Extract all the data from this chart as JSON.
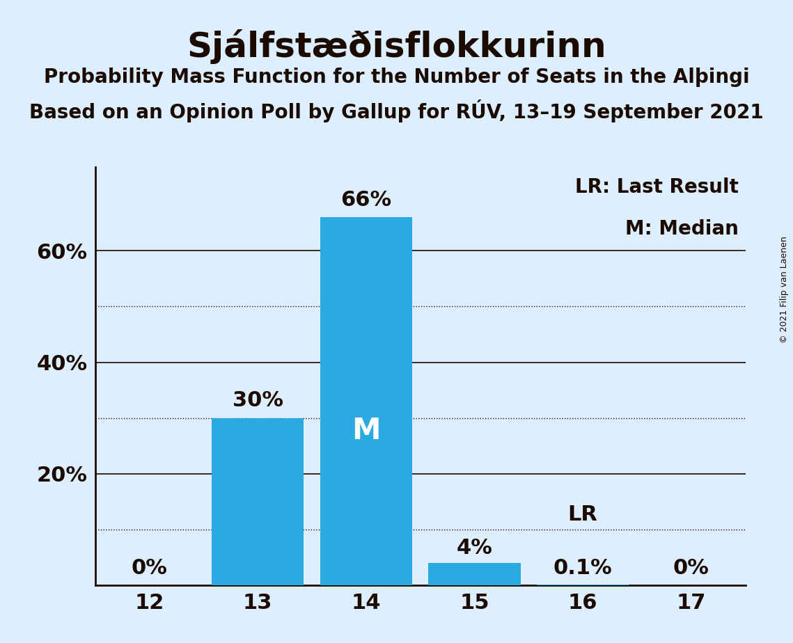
{
  "title": "Sjálfstæðisflokkurinn",
  "subtitle1": "Probability Mass Function for the Number of Seats in the Alþingi",
  "subtitle2": "Based on an Opinion Poll by Gallup for RÚV, 13–19 September 2021",
  "copyright": "© 2021 Filip van Laenen",
  "seats": [
    12,
    13,
    14,
    15,
    16,
    17
  ],
  "probabilities": [
    0.0,
    0.3,
    0.66,
    0.04,
    0.001,
    0.0
  ],
  "bar_labels": [
    "0%",
    "30%",
    "66%",
    "4%",
    "0.1%",
    "0%"
  ],
  "bar_color": "#29ABE2",
  "median_seat": 14,
  "last_result_seat": 16,
  "background_color": "#DDEEFF",
  "text_color": "#1a0a00",
  "ylim": [
    0,
    0.75
  ],
  "legend_lr": "LR: Last Result",
  "legend_m": "M: Median",
  "title_fontsize": 36,
  "subtitle_fontsize": 20,
  "label_fontsize": 22,
  "tick_fontsize": 22,
  "legend_fontsize": 20,
  "copyright_fontsize": 9,
  "solid_grid": [
    0.2,
    0.4,
    0.6
  ],
  "dotted_grid": [
    0.1,
    0.3,
    0.5
  ],
  "ytick_positions": [
    0.2,
    0.4,
    0.6
  ],
  "ytick_labels": [
    "20%",
    "40%",
    "60%"
  ]
}
